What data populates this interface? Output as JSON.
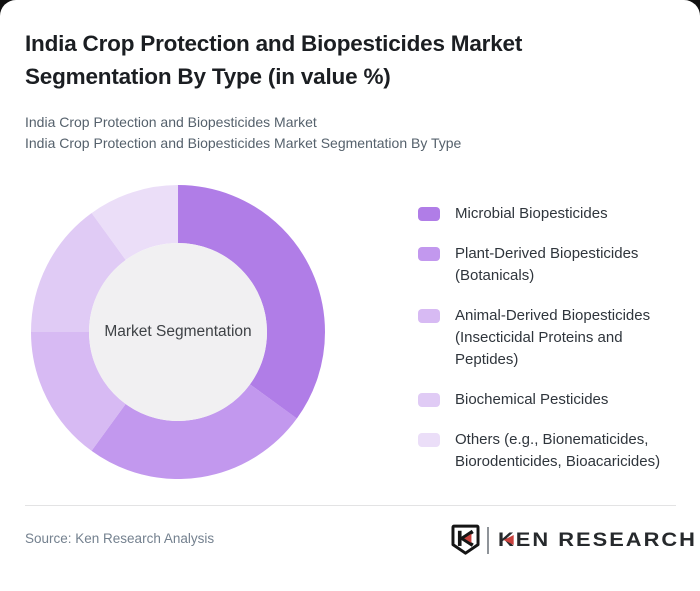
{
  "header": {
    "title": "India Crop Protection and Biopesticides Market Segmentation By Type (in value %)",
    "subtitle_line1": "India Crop Protection and Biopesticides Market",
    "subtitle_line2": "India Crop Protection and Biopesticides Market Segmentation By Type"
  },
  "chart_data": {
    "type": "pie",
    "subtype": "donut",
    "title": "India Crop Protection and Biopesticides Market Segmentation By Type (in value %)",
    "center_label": "Market Segmentation",
    "categories": [
      "Microbial Biopesticides",
      "Plant-Derived Biopesticides (Botanicals)",
      "Animal-Derived Biopesticides (Insecticidal Proteins and Peptides)",
      "Biochemical Pesticides",
      "Others (e.g., Bionematicides, Biorodenticides, Bioacaricides)"
    ],
    "values": [
      35,
      25,
      15,
      15,
      10
    ],
    "colors": [
      "#b07de7",
      "#c298ee",
      "#d7baf3",
      "#e0cbf5",
      "#ebdef8"
    ],
    "hole_color": "#f1f0f2",
    "start_angle_deg": 0,
    "direction": "clockwise",
    "legend_position": "right"
  },
  "footer": {
    "source": "Source: Ken Research Analysis",
    "logo": {
      "wordmark": "KEN RESEARCH",
      "accent_color": "#c9413d"
    }
  }
}
